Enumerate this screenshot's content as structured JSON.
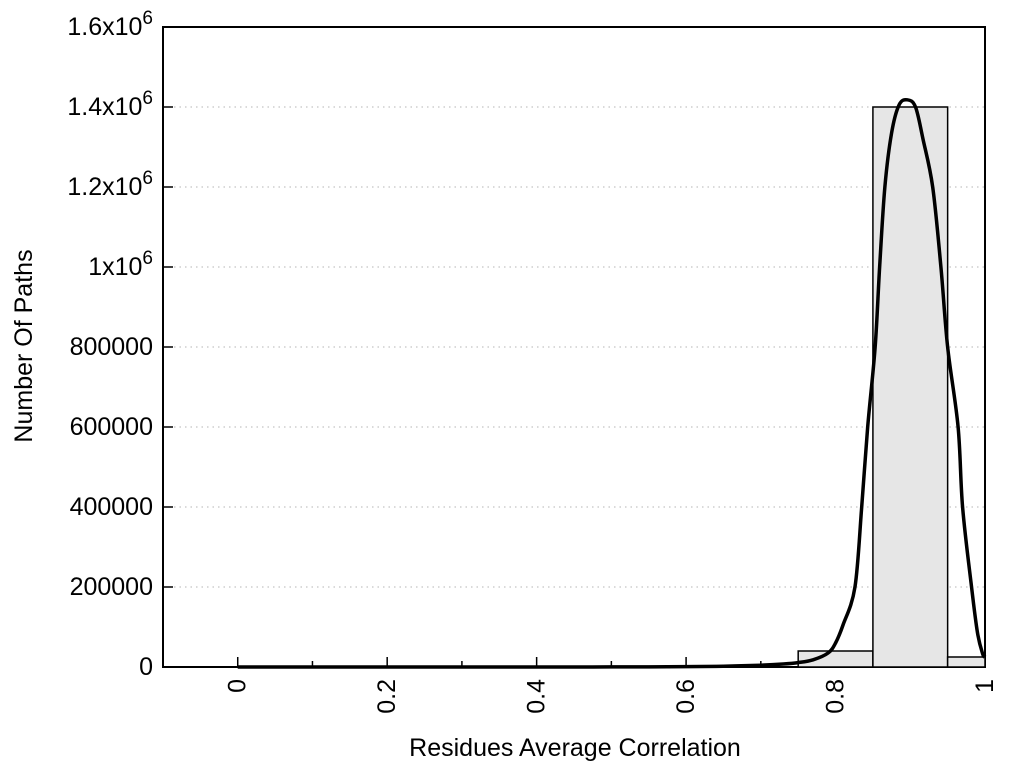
{
  "chart_data": {
    "type": "histogram_with_fit_curve",
    "title": "",
    "xlabel": "Residues Average Correlation",
    "ylabel": "Number Of Paths",
    "xlim": [
      -0.1,
      1.0
    ],
    "ylim": [
      0,
      1600000
    ],
    "x_major_ticks": [
      {
        "value": 0.0,
        "label": "0"
      },
      {
        "value": 0.2,
        "label": "0.2"
      },
      {
        "value": 0.4,
        "label": "0.4"
      },
      {
        "value": 0.6,
        "label": "0.6"
      },
      {
        "value": 0.8,
        "label": "0.8"
      },
      {
        "value": 1.0,
        "label": "1"
      }
    ],
    "x_minor_ticks": [
      0.1,
      0.3,
      0.5,
      0.7,
      0.9
    ],
    "x_tick_label_rotation_deg": -90,
    "y_ticks": [
      {
        "value": 0,
        "base": "0",
        "sup": ""
      },
      {
        "value": 200000,
        "base": "200000",
        "sup": ""
      },
      {
        "value": 400000,
        "base": "400000",
        "sup": ""
      },
      {
        "value": 600000,
        "base": "600000",
        "sup": ""
      },
      {
        "value": 800000,
        "base": "800000",
        "sup": ""
      },
      {
        "value": 1000000,
        "base": "1x10",
        "sup": "6"
      },
      {
        "value": 1200000,
        "base": "1.2x10",
        "sup": "6"
      },
      {
        "value": 1400000,
        "base": "1.4x10",
        "sup": "6"
      },
      {
        "value": 1600000,
        "base": "1.6x10",
        "sup": "6"
      }
    ],
    "grid": {
      "y_major_dotted": true,
      "vertical_gridlines": false,
      "legend": "none"
    },
    "bin_width": 0.1,
    "bars": [
      {
        "x_left": 0.75,
        "x_right": 0.85,
        "value": 40000
      },
      {
        "x_left": 0.85,
        "x_right": 0.95,
        "value": 1400000
      },
      {
        "x_left": 0.95,
        "x_right": 1.0,
        "value": 25000
      }
    ],
    "curve": {
      "description": "bell-shaped fit curve, peak ~1420000 near x=0.896",
      "points": [
        [
          0.0,
          0
        ],
        [
          0.05,
          0
        ],
        [
          0.1,
          0
        ],
        [
          0.15,
          0
        ],
        [
          0.2,
          0
        ],
        [
          0.25,
          0
        ],
        [
          0.3,
          0
        ],
        [
          0.35,
          0
        ],
        [
          0.4,
          0
        ],
        [
          0.45,
          100
        ],
        [
          0.5,
          200
        ],
        [
          0.55,
          400
        ],
        [
          0.6,
          900
        ],
        [
          0.65,
          2000
        ],
        [
          0.7,
          4500
        ],
        [
          0.73,
          7500
        ],
        [
          0.75,
          11000
        ],
        [
          0.77,
          18000
        ],
        [
          0.79,
          35000
        ],
        [
          0.8,
          60000
        ],
        [
          0.81,
          105000
        ],
        [
          0.826,
          200000
        ],
        [
          0.835,
          400000
        ],
        [
          0.843,
          600000
        ],
        [
          0.853,
          800000
        ],
        [
          0.859,
          1000000
        ],
        [
          0.866,
          1200000
        ],
        [
          0.875,
          1335000
        ],
        [
          0.885,
          1405000
        ],
        [
          0.896,
          1418000
        ],
        [
          0.907,
          1400000
        ],
        [
          0.917,
          1320000
        ],
        [
          0.93,
          1200000
        ],
        [
          0.941,
          1000000
        ],
        [
          0.95,
          800000
        ],
        [
          0.964,
          600000
        ],
        [
          0.97,
          400000
        ],
        [
          0.982,
          200000
        ],
        [
          0.99,
          85000
        ],
        [
          0.997,
          32000
        ],
        [
          1.0,
          25000
        ]
      ]
    },
    "colors": {
      "bar_fill": "#e6e6e6",
      "bar_border": "#000000",
      "curve": "#000000",
      "grid": "#b4b4b4",
      "axis": "#000000",
      "background": "#ffffff",
      "text": "#000000"
    }
  }
}
